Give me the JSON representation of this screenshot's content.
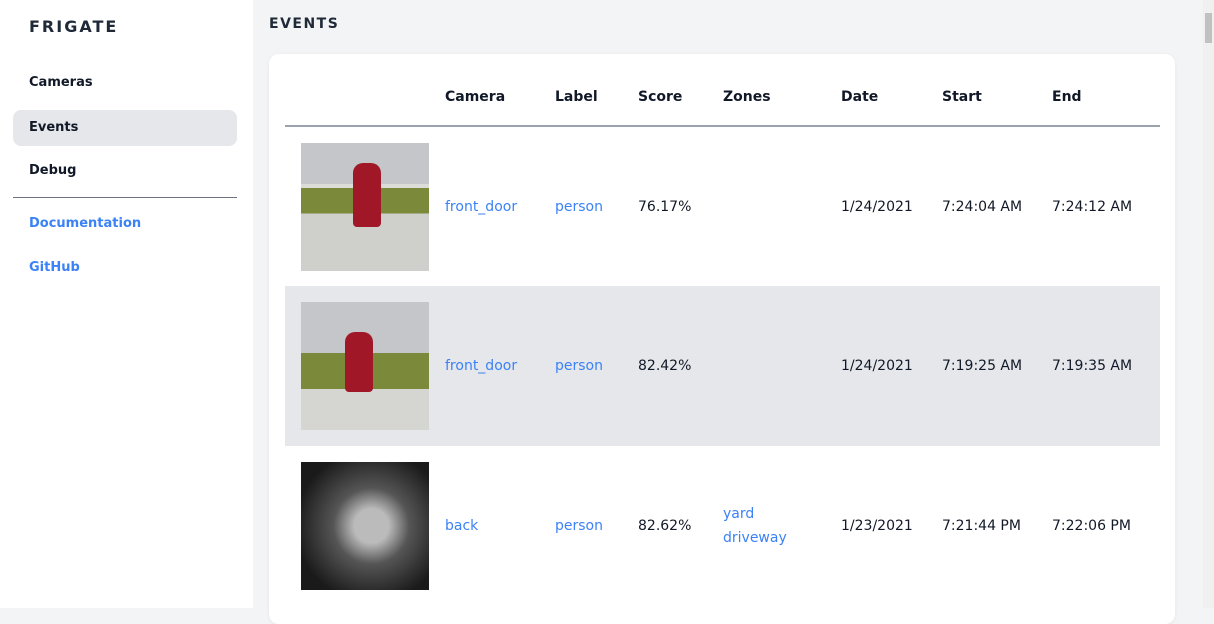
{
  "sidebar": {
    "brand": "FRIGATE",
    "items": [
      {
        "label": "Cameras"
      },
      {
        "label": "Events",
        "active": true
      },
      {
        "label": "Debug"
      }
    ],
    "links": [
      {
        "label": "Documentation"
      },
      {
        "label": "GitHub"
      }
    ]
  },
  "page": {
    "title": "EVENTS"
  },
  "table": {
    "headers": [
      "Camera",
      "Label",
      "Score",
      "Zones",
      "Date",
      "Start",
      "End"
    ],
    "rows": [
      {
        "camera": "front_door",
        "label": "person",
        "score": "76.17%",
        "zones": [],
        "date": "1/24/2021",
        "start": "7:24:04 AM",
        "end": "7:24:12 AM"
      },
      {
        "camera": "front_door",
        "label": "person",
        "score": "82.42%",
        "zones": [],
        "date": "1/24/2021",
        "start": "7:19:25 AM",
        "end": "7:19:35 AM"
      },
      {
        "camera": "back",
        "label": "person",
        "score": "82.62%",
        "zones": [
          "yard",
          "driveway"
        ],
        "date": "1/23/2021",
        "start": "7:21:44 PM",
        "end": "7:22:06 PM"
      }
    ]
  },
  "colors": {
    "accent": "#3b82f6",
    "active_bg": "#e5e7eb"
  }
}
